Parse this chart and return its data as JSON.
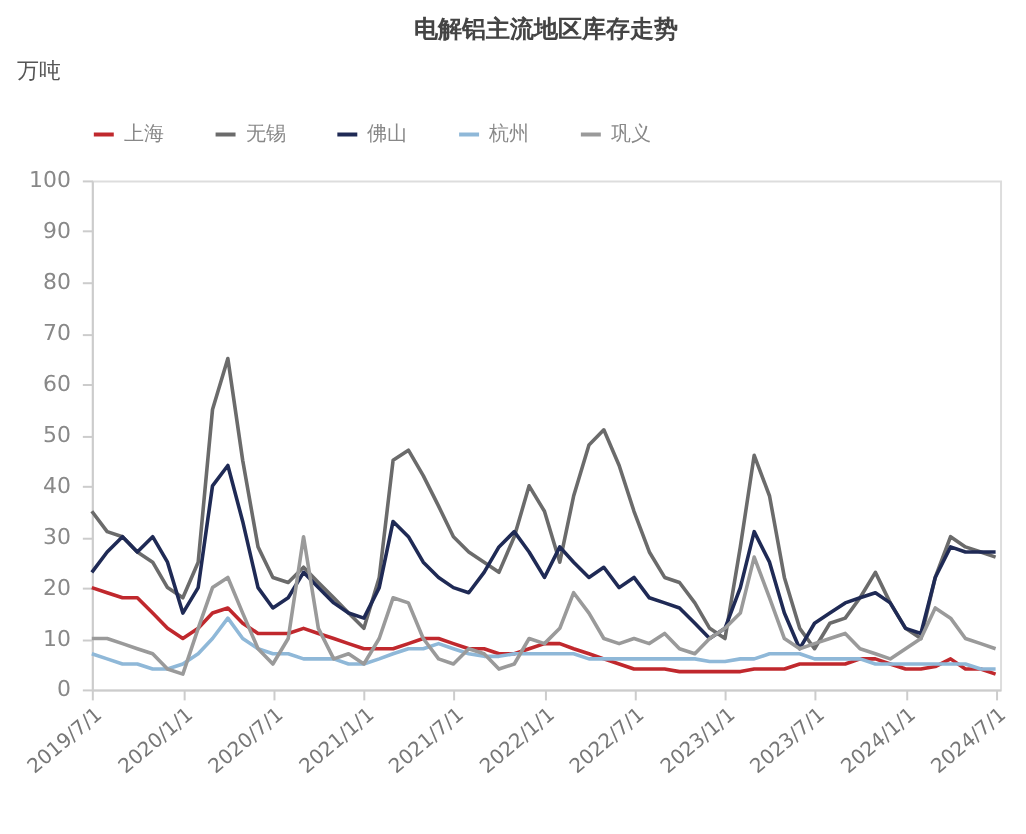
{
  "chart_data": {
    "type": "line",
    "title": "电解铝主流地区库存走势",
    "ylabel": "万吨",
    "x": [
      "2019-07",
      "2019-08",
      "2019-09",
      "2019-10",
      "2019-11",
      "2019-12",
      "2020-01",
      "2020-02",
      "2020-03",
      "2020-04",
      "2020-05",
      "2020-06",
      "2020-07",
      "2020-08",
      "2020-09",
      "2020-10",
      "2020-11",
      "2020-12",
      "2021-01",
      "2021-02",
      "2021-03",
      "2021-04",
      "2021-05",
      "2021-06",
      "2021-07",
      "2021-08",
      "2021-09",
      "2021-10",
      "2021-11",
      "2021-12",
      "2022-01",
      "2022-02",
      "2022-03",
      "2022-04",
      "2022-05",
      "2022-06",
      "2022-07",
      "2022-08",
      "2022-09",
      "2022-10",
      "2022-11",
      "2022-12",
      "2023-01",
      "2023-02",
      "2023-03",
      "2023-04",
      "2023-05",
      "2023-06",
      "2023-07",
      "2023-08",
      "2023-09",
      "2023-10",
      "2023-11",
      "2023-12",
      "2024-01",
      "2024-02",
      "2024-03",
      "2024-04",
      "2024-05",
      "2024-06",
      "2024-07"
    ],
    "series": [
      {
        "name": "上海",
        "color": "#c0282d",
        "values": [
          20,
          19,
          18,
          18,
          15,
          12,
          10,
          12,
          15,
          16,
          13,
          11,
          11,
          11,
          12,
          11,
          10,
          9,
          8,
          8,
          8,
          9,
          10,
          10,
          9,
          8,
          8,
          7,
          7,
          8,
          9,
          9,
          8,
          7,
          6,
          5,
          4,
          4,
          4,
          3.5,
          3.5,
          3.5,
          3.5,
          3.5,
          4,
          4,
          4,
          5,
          5,
          5,
          5,
          6,
          6,
          5,
          4,
          4,
          4.5,
          6,
          4,
          4,
          3
        ]
      },
      {
        "name": "无锡",
        "color": "#6b6b6b",
        "values": [
          35,
          31,
          30,
          27,
          25,
          20,
          18,
          25,
          55,
          65,
          45,
          28,
          22,
          21,
          24,
          21,
          18,
          15,
          12,
          22,
          45,
          47,
          42,
          36,
          30,
          27,
          25,
          23,
          30,
          40,
          35,
          25,
          38,
          48,
          51,
          44,
          35,
          27,
          22,
          21,
          17,
          12,
          10,
          28,
          46,
          38,
          22,
          12,
          8,
          13,
          14,
          18,
          23,
          17,
          12,
          10,
          22,
          30,
          28,
          27,
          26
        ]
      },
      {
        "name": "佛山",
        "color": "#1f2a55",
        "values": [
          23,
          27,
          30,
          27,
          30,
          25,
          15,
          20,
          40,
          44,
          33,
          20,
          16,
          18,
          23,
          20,
          17,
          15,
          14,
          20,
          33,
          30,
          25,
          22,
          20,
          19,
          23,
          28,
          31,
          27,
          22,
          28,
          25,
          22,
          24,
          20,
          22,
          18,
          17,
          16,
          13,
          10,
          12,
          20,
          31,
          25,
          15,
          8,
          13,
          15,
          17,
          18,
          19,
          17,
          12,
          11,
          22,
          28,
          27,
          27,
          27
        ]
      },
      {
        "name": "杭州",
        "color": "#8fb8d8",
        "values": [
          7,
          6,
          5,
          5,
          4,
          4,
          5,
          7,
          10,
          14,
          10,
          8,
          7,
          7,
          6,
          6,
          6,
          5,
          5,
          6,
          7,
          8,
          8,
          9,
          8,
          7,
          6.5,
          6.5,
          7,
          7,
          7,
          7,
          7,
          6,
          6,
          6,
          6,
          6,
          6,
          6,
          6,
          5.5,
          5.5,
          6,
          6,
          7,
          7,
          7,
          6,
          6,
          6,
          6,
          5,
          5,
          5,
          5,
          5,
          5,
          5,
          4,
          4
        ]
      },
      {
        "name": "巩义",
        "color": "#9a9a9a",
        "values": [
          10,
          10,
          9,
          8,
          7,
          4,
          3,
          12,
          20,
          22,
          15,
          8,
          5,
          10,
          30,
          12,
          6,
          7,
          5,
          10,
          18,
          17,
          10,
          6,
          5,
          8,
          7,
          4,
          5,
          10,
          9,
          12,
          19,
          15,
          10,
          9,
          10,
          9,
          11,
          8,
          7,
          10,
          12,
          15,
          26,
          18,
          10,
          8,
          9,
          10,
          11,
          8,
          7,
          6,
          8,
          10,
          16,
          14,
          10,
          9,
          8
        ]
      }
    ],
    "xlim": [
      "2019-07-01",
      "2024-07-10"
    ],
    "xticks": [
      {
        "value": "2019-07-01",
        "label": "2019/7/1"
      },
      {
        "value": "2020-01-01",
        "label": "2020/1/1"
      },
      {
        "value": "2020-07-01",
        "label": "2020/7/1"
      },
      {
        "value": "2021-01-01",
        "label": "2021/1/1"
      },
      {
        "value": "2021-07-01",
        "label": "2021/7/1"
      },
      {
        "value": "2022-01-01",
        "label": "2022/1/1"
      },
      {
        "value": "2022-07-01",
        "label": "2022/7/1"
      },
      {
        "value": "2023-01-01",
        "label": "2023/1/1"
      },
      {
        "value": "2023-07-01",
        "label": "2023/7/1"
      },
      {
        "value": "2024-01-01",
        "label": "2024/1/1"
      },
      {
        "value": "2024-07-01",
        "label": "2024/7/1"
      }
    ],
    "ylim": [
      0,
      100
    ],
    "yticks": [
      0,
      10,
      20,
      30,
      40,
      50,
      60,
      70,
      80,
      90,
      100
    ],
    "grid": false,
    "legend": "top",
    "line_style": "solid",
    "marker": "none"
  }
}
